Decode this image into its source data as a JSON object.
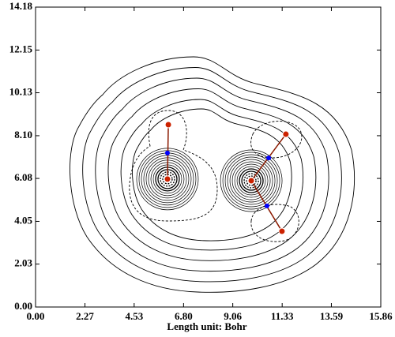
{
  "chart_data": {
    "type": "contour",
    "xlabel": "Length unit: Bohr",
    "xlim": [
      0,
      15.86
    ],
    "ylim": [
      0,
      14.18
    ],
    "xticks": [
      {
        "value": 0,
        "label": "0.00"
      },
      2.27,
      4.53,
      {
        "value": 6.8,
        "label": "6.80"
      },
      9.06,
      11.33,
      13.59,
      15.86
    ],
    "yticks": [
      {
        "value": 0,
        "label": "0.00"
      },
      2.03,
      4.05,
      6.08,
      {
        "value": 8.1,
        "label": "8.10"
      },
      10.13,
      12.15,
      14.18
    ],
    "atoms": {
      "x": [
        6.06,
        9.91,
        6.1,
        11.5,
        11.32
      ],
      "y": [
        6.05,
        5.97,
        8.62,
        8.17,
        3.58
      ],
      "color": "#cc2200"
    },
    "bonds": [
      [
        0,
        2
      ],
      [
        1,
        3
      ],
      [
        1,
        4
      ]
    ],
    "bond_points": {
      "x": [
        6.06,
        10.71,
        10.63
      ],
      "y": [
        7.28,
        7.05,
        4.78
      ],
      "color": "#0000ff"
    }
  }
}
